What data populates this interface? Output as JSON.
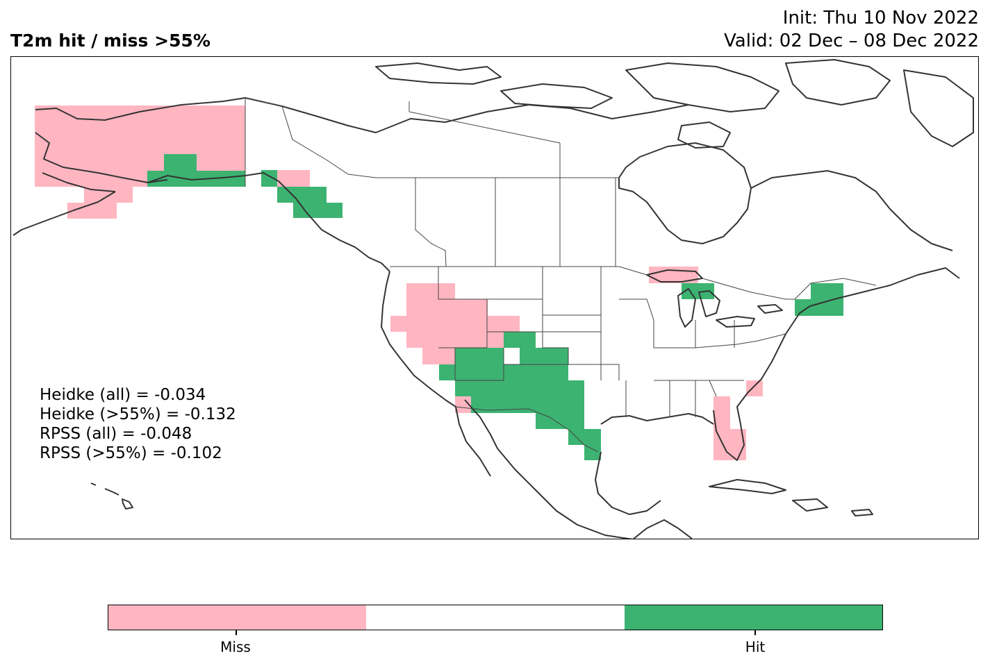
{
  "title": "T2m hit / miss  >55%",
  "init_line": "Init: Thu 10 Nov 2022",
  "valid_line": "Valid: 02 Dec – 08 Dec 2022",
  "stats": [
    "Heidke (all) = -0.034",
    "Heidke (>55%) = -0.132",
    "RPSS (all) = -0.048",
    "RPSS (>55%) = -0.102"
  ],
  "colors": {
    "miss": "#ffb6c1",
    "neutral": "#ffffff",
    "hit": "#3cb371",
    "coast": "#333333"
  },
  "colorbar": {
    "labels": [
      "Miss",
      "Hit"
    ],
    "segments": [
      "miss",
      "neutral",
      "hit"
    ]
  },
  "map_regions": [
    {
      "name": "Alaska",
      "outcome": "miss"
    },
    {
      "name": "South-central Alaska coast",
      "outcome": "hit"
    },
    {
      "name": "Southeast Alaska panhandle",
      "outcome": "hit"
    },
    {
      "name": "Northern Rockies / Great Basin",
      "outcome": "miss"
    },
    {
      "name": "Desert Southwest / Texas",
      "outcome": "hit"
    },
    {
      "name": "Upper Michigan",
      "outcome": "miss"
    },
    {
      "name": "Northern Michigan",
      "outcome": "hit"
    },
    {
      "name": "New England / Maine",
      "outcome": "hit"
    },
    {
      "name": "Florida / Southeast coast",
      "outcome": "miss"
    }
  ]
}
